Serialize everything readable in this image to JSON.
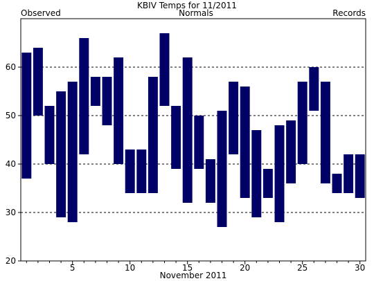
{
  "chart_data": {
    "type": "bar",
    "subtype": "floating-range",
    "title": "KBIV Temps for 11/2011",
    "xlabel": "November 2011",
    "ylabel": "",
    "legend": [
      {
        "label": "Observed",
        "color": "#000066",
        "placement": "top-left"
      },
      {
        "label": "Normals",
        "color": "#006600",
        "placement": "top-center"
      },
      {
        "label": "Records",
        "color": "#bb88dd",
        "placement": "top-right"
      }
    ],
    "bar_color": "#000066",
    "grid": {
      "y_dashed": true,
      "values": [
        30,
        40,
        50,
        60
      ]
    },
    "xlim": [
      0.5,
      30.5
    ],
    "ylim": [
      20,
      70
    ],
    "x_ticks": [
      5,
      10,
      15,
      20,
      25,
      30
    ],
    "y_ticks": [
      20,
      30,
      40,
      50,
      60
    ],
    "series": [
      {
        "name": "Observed",
        "days": [
          1,
          2,
          3,
          4,
          5,
          6,
          7,
          8,
          9,
          10,
          11,
          12,
          13,
          14,
          15,
          16,
          17,
          18,
          19,
          20,
          21,
          22,
          23,
          24,
          25,
          26,
          27,
          28,
          29,
          30
        ],
        "high": [
          63,
          64,
          52,
          55,
          57,
          66,
          58,
          58,
          62,
          43,
          43,
          58,
          67,
          52,
          62,
          50,
          41,
          51,
          57,
          56,
          47,
          39,
          48,
          49,
          57,
          60,
          57,
          38,
          42,
          42
        ],
        "low": [
          37,
          50,
          40,
          29,
          28,
          42,
          52,
          48,
          40,
          34,
          34,
          34,
          52,
          39,
          32,
          39,
          32,
          27,
          42,
          33,
          29,
          33,
          28,
          36,
          40,
          51,
          36,
          34,
          34,
          33
        ]
      }
    ]
  }
}
